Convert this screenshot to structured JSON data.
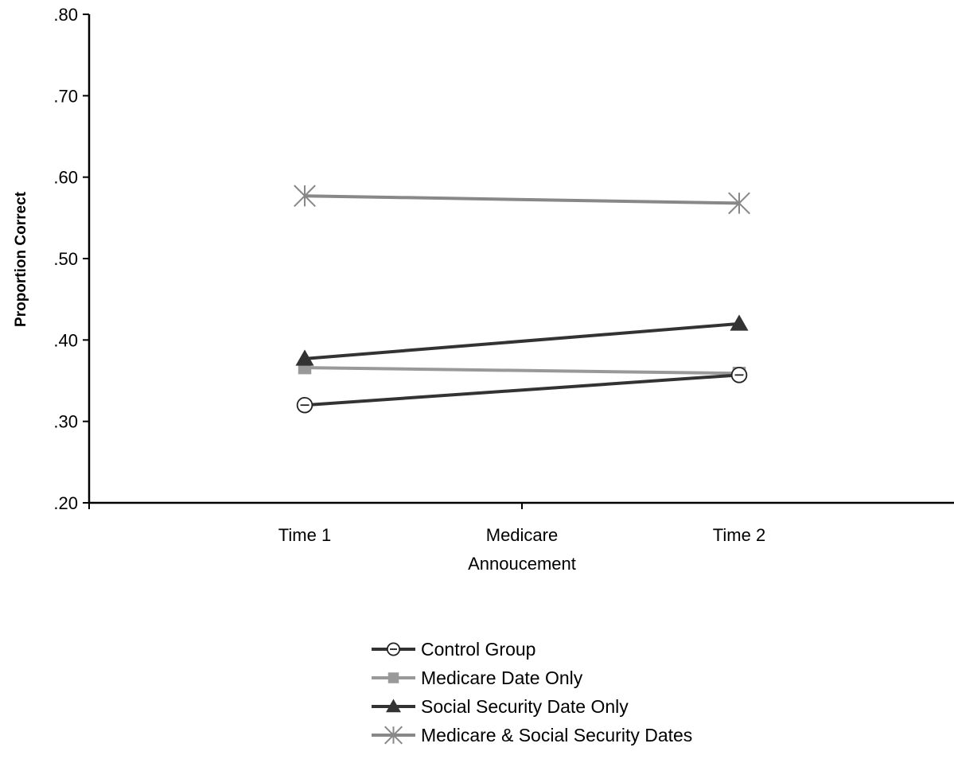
{
  "chart_data": {
    "type": "line",
    "title": "",
    "xlabel": "",
    "ylabel": "Proportion Correct",
    "ylim": [
      0.2,
      0.8
    ],
    "y_ticks": [
      ".80",
      ".70",
      ".60",
      ".50",
      ".40",
      ".30",
      ".20"
    ],
    "y_tick_values": [
      0.8,
      0.7,
      0.6,
      0.5,
      0.4,
      0.3,
      0.2
    ],
    "categories": [
      "Time 1",
      "Medicare Annoucement",
      "Time 2"
    ],
    "category_lines": [
      [
        "Time 1"
      ],
      [
        "Medicare",
        "Annoucement"
      ],
      [
        "Time 2"
      ]
    ],
    "grid": false,
    "legend_position": "bottom",
    "series": [
      {
        "name": "Control Group",
        "x": [
          "Time 1",
          "Time 2"
        ],
        "values": [
          0.32,
          0.357
        ],
        "color": "#333333",
        "marker": "open-circle"
      },
      {
        "name": "Medicare Date Only",
        "x": [
          "Time 1",
          "Time 2"
        ],
        "values": [
          0.366,
          0.359
        ],
        "color": "#999999",
        "marker": "square"
      },
      {
        "name": "Social Security Date Only",
        "x": [
          "Time 1",
          "Time 2"
        ],
        "values": [
          0.377,
          0.42
        ],
        "color": "#333333",
        "marker": "triangle"
      },
      {
        "name": "Medicare & Social Security Dates",
        "x": [
          "Time 1",
          "Time 2"
        ],
        "values": [
          0.577,
          0.568
        ],
        "color": "#888888",
        "marker": "asterisk"
      }
    ]
  }
}
